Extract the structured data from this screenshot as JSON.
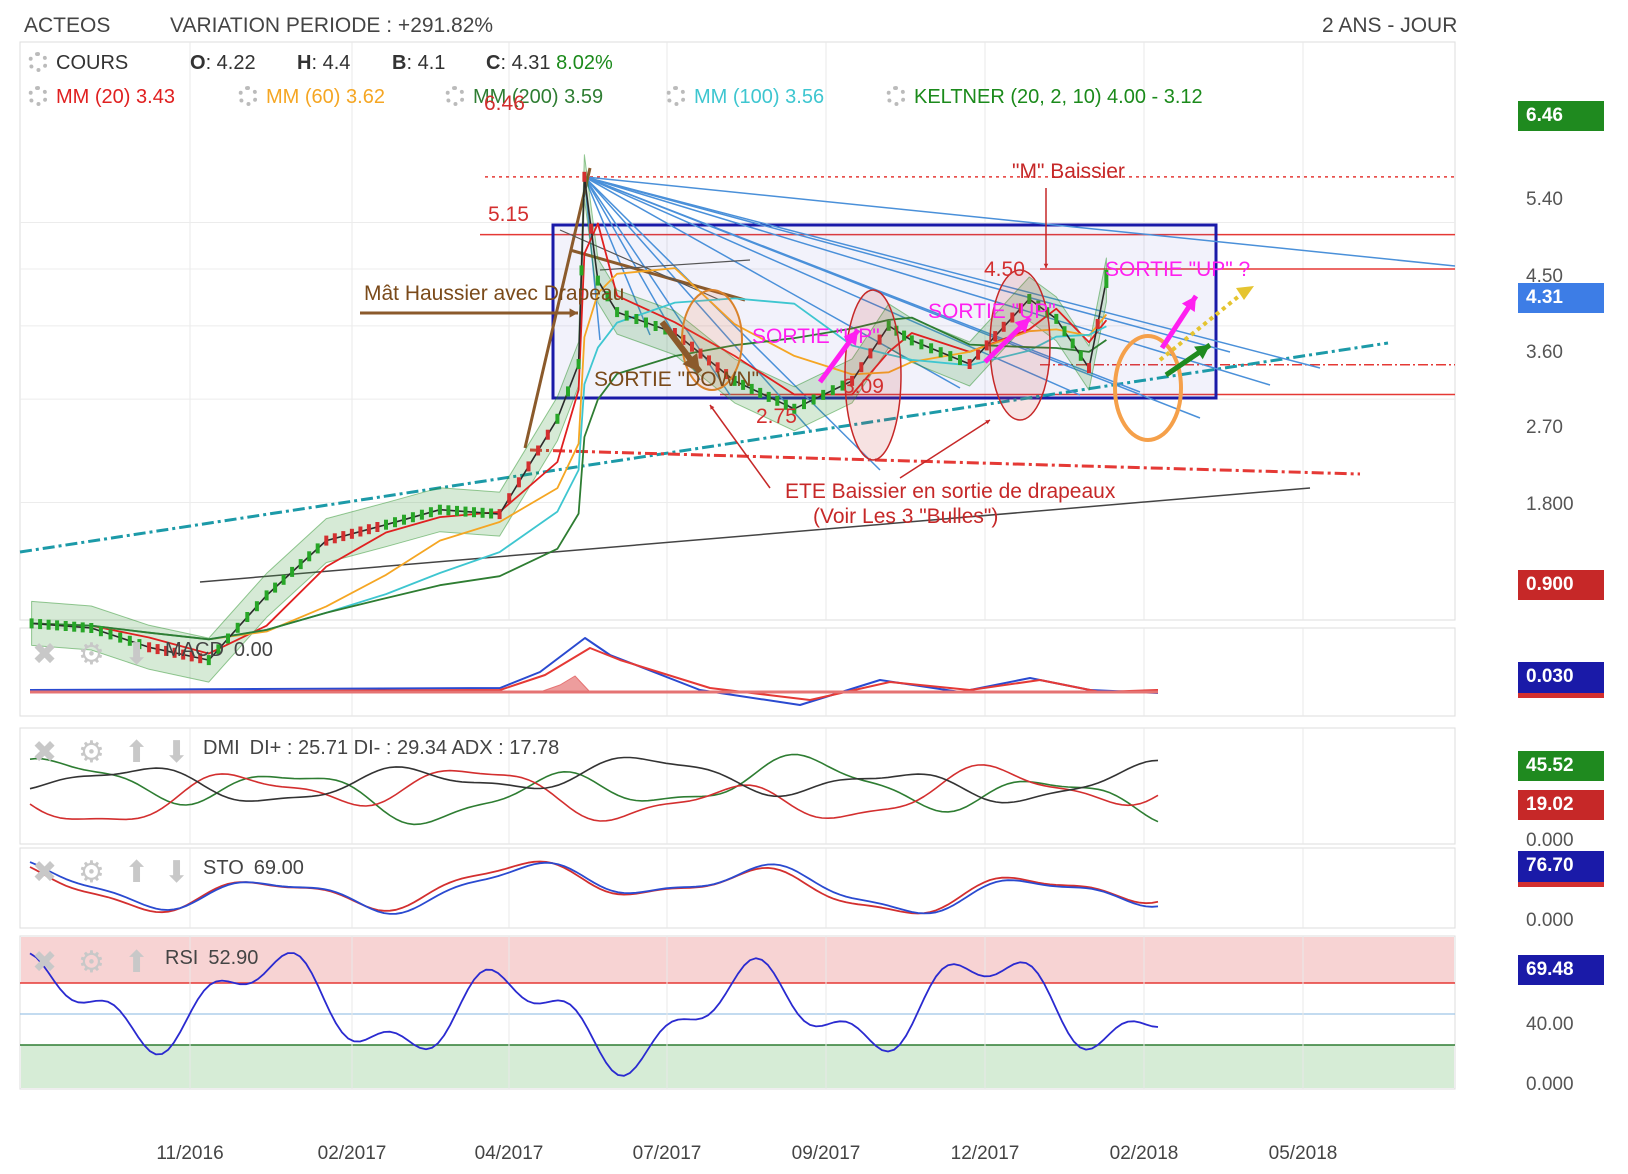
{
  "header": {
    "ticker": "ACTEOS",
    "variation": "VARIATION PERIODE : +291.82%",
    "period": "2 ANS - JOUR"
  },
  "legend": {
    "cours": "COURS",
    "o_label": "O",
    "o_value": ": 4.22",
    "h_label": "H",
    "h_value": ": 4.4",
    "b_label": "B",
    "b_value": ": 4.1",
    "c_label": "C",
    "c_value": ": 4.31",
    "change": "8.02%",
    "mm20": "MM (20)",
    "mm20_value": "3.43",
    "mm60": "MM (60)",
    "mm60_value": "3.62",
    "mm200": "MM (200)",
    "mm200_value": "3.59",
    "mm100": "MM (100)",
    "mm100_value": "3.56",
    "keltner": "KELTNER (20, 2, 10)",
    "keltner_value": "4.00 - 3.12"
  },
  "colors": {
    "mm20": "#e02020",
    "mm60": "#f5a623",
    "mm200": "#2e7d32",
    "mm100": "#3ec6d0",
    "keltner": "#1b8a1b",
    "up": "#27a627",
    "down": "#d32f2f",
    "rsi_zone_high": "#f7d3d3",
    "rsi_zone_low": "#d6ecd6"
  },
  "price_tags": {
    "high": "6.46",
    "last": "4.31",
    "low": "0.900"
  },
  "panels": {
    "macd": {
      "label": "MACD",
      "value": "0.00",
      "tag": "0.030"
    },
    "dmi": {
      "label": "DMI",
      "value": "DI+ : 25.71 DI- : 29.34 ADX : 17.78",
      "tag1": "45.52",
      "tag2": "19.02",
      "tick": "0.000"
    },
    "sto": {
      "label": "STO",
      "value": "69.00",
      "tag": "76.70",
      "tick": "0.000"
    },
    "rsi": {
      "label": "RSI",
      "value": "52.90",
      "tag": "69.48",
      "tick1": "40.00",
      "tick2": "0.000"
    }
  },
  "annotations": {
    "mat": "Mât Haussier avec Drapeau",
    "m_baissier": "\"M\" Baissier",
    "sortie_down": "SORTIE \"DOWN\"",
    "sortie_up1": "SORTIE \"UP\"",
    "sortie_up2": "SORTIE \"UP\"",
    "sortie_up3": "SORTIE \"UP\" ?",
    "ete1": "ETE Baissier en sortie de drapeaux",
    "ete2": "(Voir Les 3 \"Bulles\")",
    "l646": "6.46",
    "l515": "5.15",
    "l450": "4.50",
    "l309": "3.09",
    "l275": "2.75"
  },
  "chart_data": {
    "type": "line",
    "title": "",
    "subtitle": "VARIATION PERIODE : +291.82%",
    "y_scale": "log",
    "ylim": [
      0.85,
      6.8
    ],
    "y_ticks": [
      "5.40",
      "4.50",
      "3.60",
      "2.70",
      "1.800"
    ],
    "x_ticks": [
      "11/2016",
      "02/2017",
      "04/2017",
      "07/2017",
      "09/2017",
      "12/2017",
      "02/2018",
      "05/2018"
    ],
    "x": [
      "2016-08",
      "2016-09",
      "2016-10",
      "2016-11",
      "2016-12",
      "2017-01",
      "2017-02",
      "2017-03",
      "2017-04",
      "2017-05-01",
      "2017-05-12",
      "2017-05-15",
      "2017-05-22",
      "2017-06",
      "2017-07",
      "2017-08",
      "2017-09",
      "2017-10",
      "2017-10-20",
      "2017-11",
      "2017-12",
      "2018-01",
      "2018-01-15",
      "2018-02",
      "2018-02-10"
    ],
    "series": [
      {
        "name": "COURS",
        "values": [
          1.12,
          1.1,
          1.02,
          0.97,
          1.25,
          1.55,
          1.65,
          1.75,
          1.72,
          2.5,
          3.1,
          6.46,
          4.3,
          3.8,
          3.5,
          2.9,
          2.6,
          2.9,
          3.6,
          3.4,
          3.1,
          4.0,
          3.7,
          3.05,
          4.31
        ]
      }
    ],
    "levels": [
      6.46,
      5.15,
      4.5,
      3.09,
      2.75
    ],
    "indicators": {
      "MACD": 0.0,
      "DI+": 25.71,
      "DI-": 29.34,
      "ADX": 17.78,
      "STO": 69.0,
      "RSI": 52.9
    }
  }
}
